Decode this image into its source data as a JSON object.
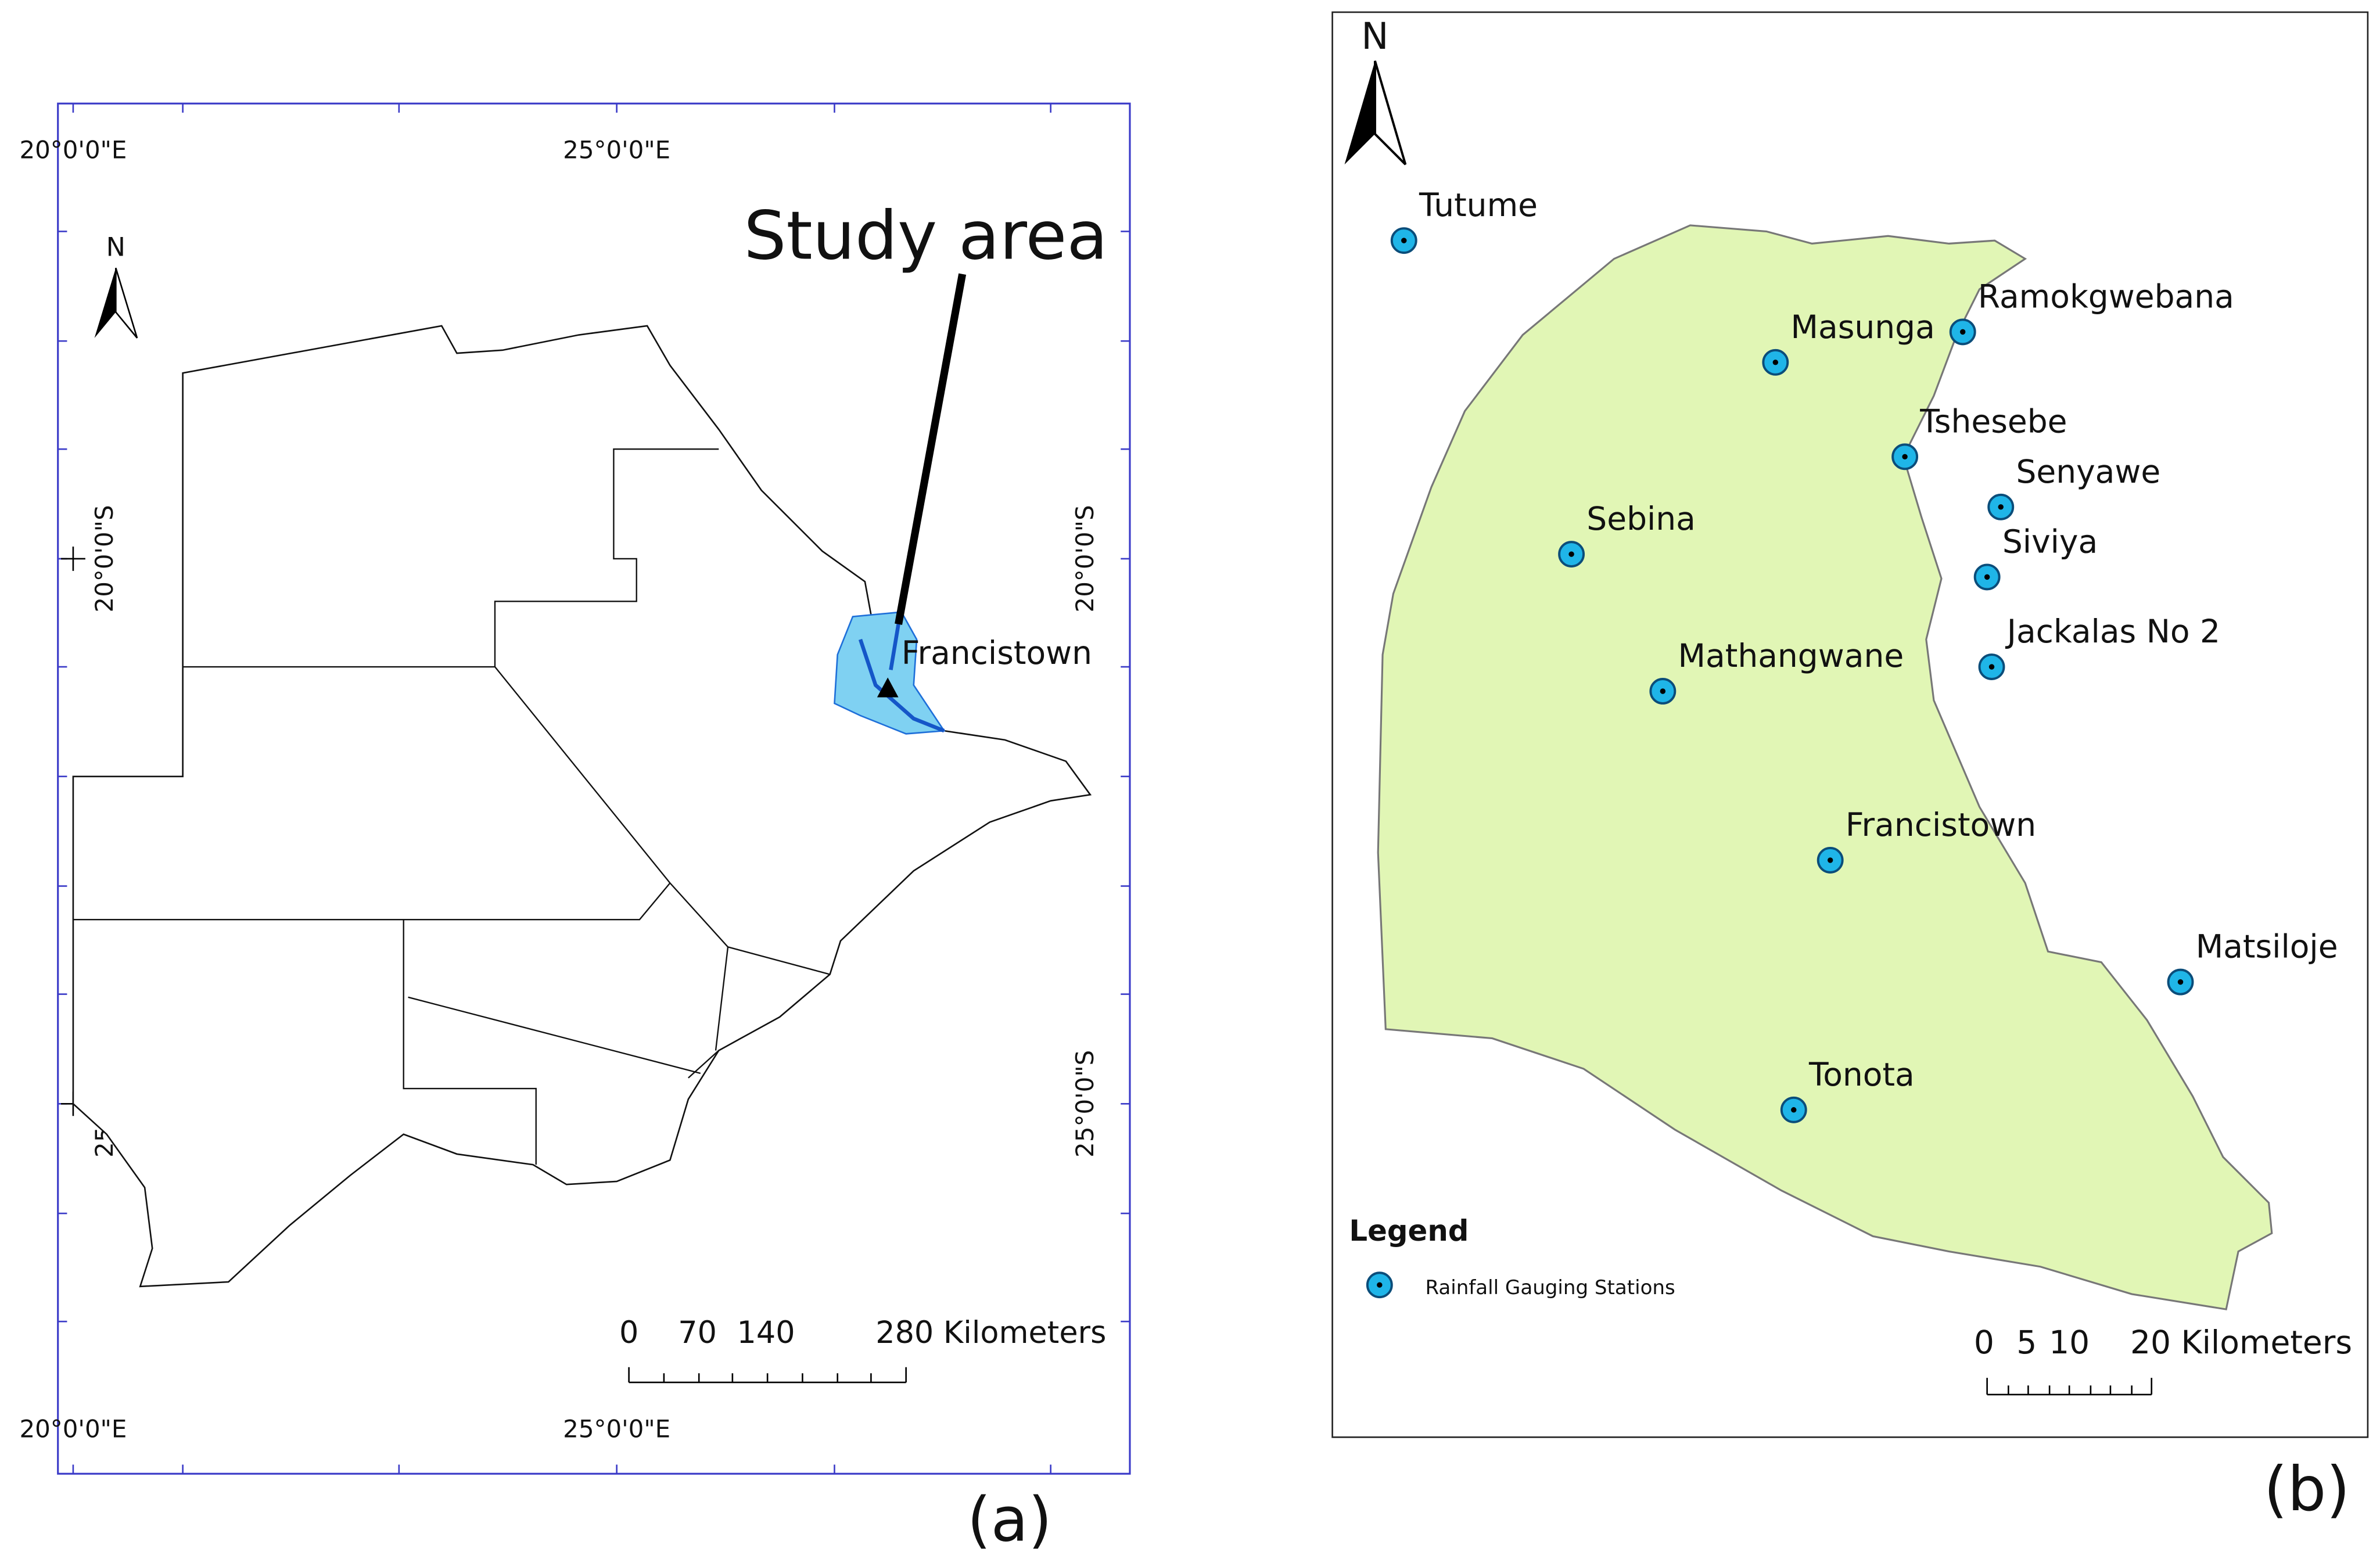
{
  "panel_a": {
    "top_labels": [
      "20°0'0\"E",
      "25°0'0\"E"
    ],
    "bottom_labels": [
      "20°0'0\"E",
      "25°0'0\"E"
    ],
    "left_labels": [
      "20°0'0\"S",
      "25°0'0\"S"
    ],
    "right_labels": [
      "20°0'0\"S",
      "25°0'0\"S"
    ],
    "north": "N",
    "callout": "Study area",
    "town": "Francistown",
    "scale_labels": [
      "0",
      "70",
      "140",
      "280 Kilometers"
    ],
    "caption": "(a)"
  },
  "panel_b": {
    "north": "N",
    "stations": [
      "Tutume",
      "Ramokgwebana",
      "Masunga",
      "Tshesebe",
      "Senyawe",
      "Sebina",
      "Siviya",
      "Jackalas No 2",
      "Mathangwane",
      "Francistown",
      "Matsiloje",
      "Tonota"
    ],
    "legend_title": "Legend",
    "legend_item": "Rainfall Gauging Stations",
    "scale_labels": [
      "0",
      "5",
      "10",
      "20 Kilometers"
    ],
    "caption": "(b)"
  }
}
